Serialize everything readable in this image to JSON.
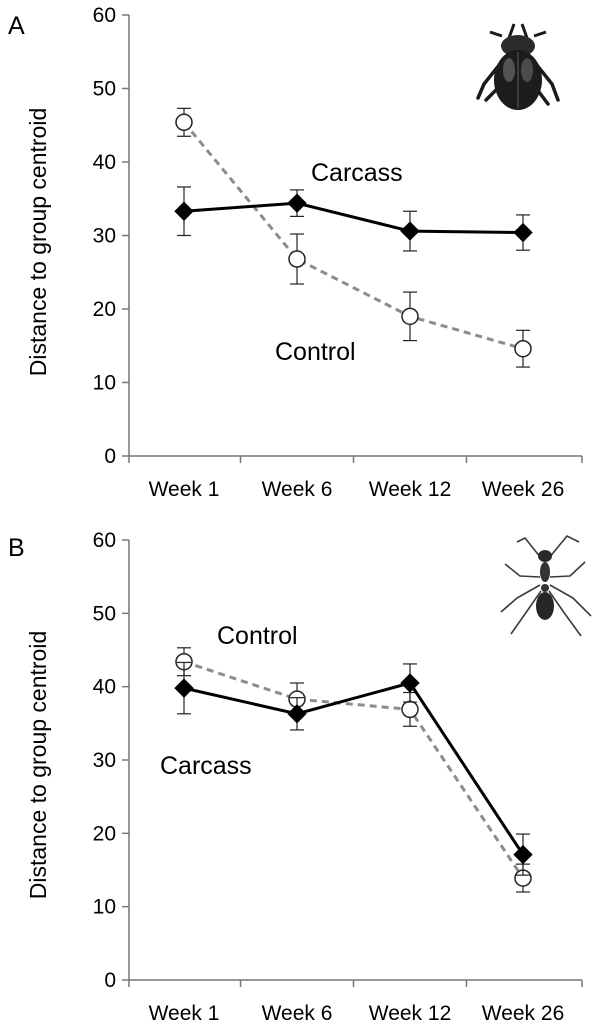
{
  "chart_data": [
    {
      "type": "line",
      "panel_label": "A",
      "xlabel": "",
      "ylabel": "Distance to group centroid",
      "ylim": [
        0,
        60
      ],
      "y_ticks": [
        0,
        10,
        20,
        30,
        40,
        50,
        60
      ],
      "categories": [
        "Week 1",
        "Week 6",
        "Week 12",
        "Week 26"
      ],
      "grid": false,
      "icon": "dung-beetle-icon",
      "series": [
        {
          "name": "Carcass",
          "values": [
            33.3,
            34.4,
            30.6,
            30.4
          ],
          "error": [
            3.3,
            1.8,
            2.7,
            2.4
          ],
          "marker": "diamond",
          "line": "solid",
          "color": "#000000"
        },
        {
          "name": "Control",
          "values": [
            45.4,
            26.8,
            19.0,
            14.6
          ],
          "error": [
            1.9,
            3.4,
            3.3,
            2.5
          ],
          "marker": "open-circle",
          "line": "dashed",
          "color": "#8c8c8c"
        }
      ]
    },
    {
      "type": "line",
      "panel_label": "B",
      "xlabel": "",
      "ylabel": "Distance to group centroid",
      "ylim": [
        0,
        60
      ],
      "y_ticks": [
        0,
        10,
        20,
        30,
        40,
        50,
        60
      ],
      "categories": [
        "Week 1",
        "Week 6",
        "Week 12",
        "Week 26"
      ],
      "grid": false,
      "icon": "ant-icon",
      "series": [
        {
          "name": "Carcass",
          "values": [
            39.8,
            36.3,
            40.5,
            17.1
          ],
          "error": [
            3.5,
            2.2,
            2.6,
            2.8
          ],
          "marker": "diamond",
          "line": "solid",
          "color": "#000000"
        },
        {
          "name": "Control",
          "values": [
            43.4,
            38.3,
            36.9,
            13.9
          ],
          "error": [
            1.9,
            2.2,
            2.3,
            1.9
          ],
          "marker": "open-circle",
          "line": "dashed",
          "color": "#8c8c8c"
        }
      ]
    }
  ]
}
